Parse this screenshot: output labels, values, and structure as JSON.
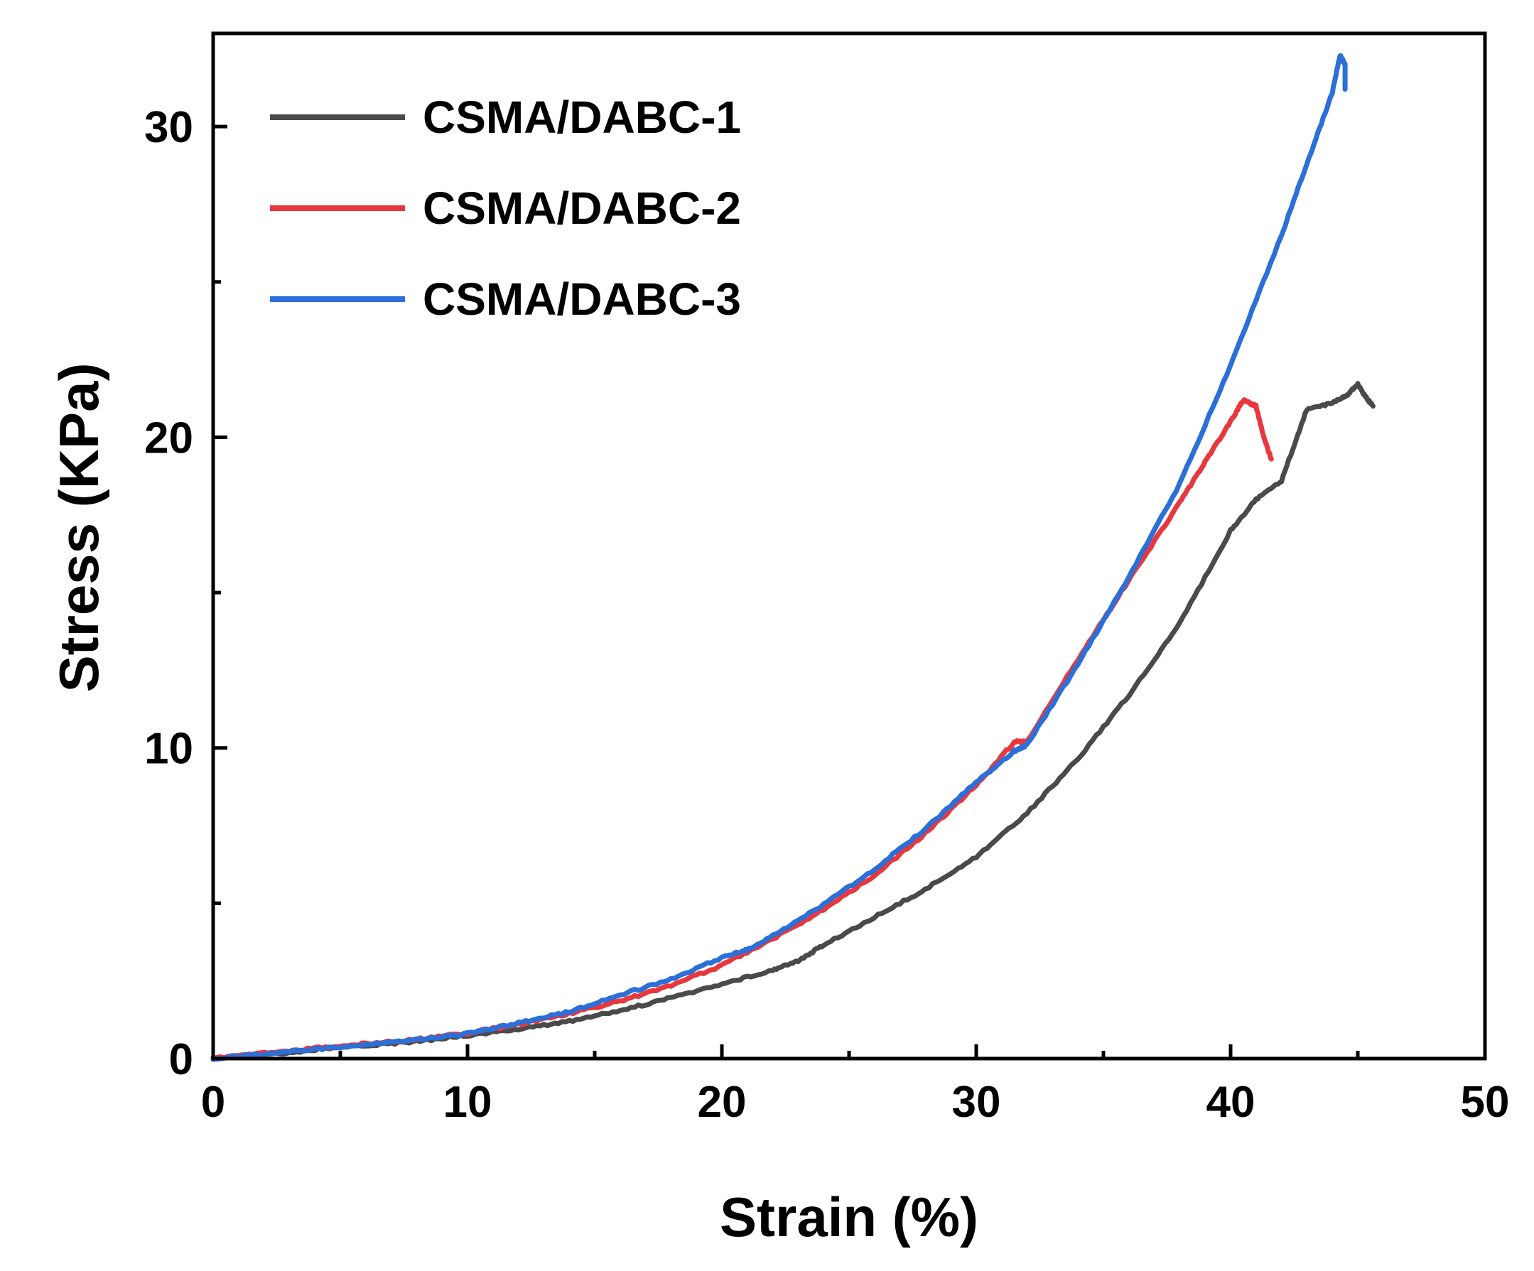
{
  "chart_data": {
    "type": "line",
    "title": "",
    "xlabel": "Strain (%)",
    "ylabel": "Stress (KPa)",
    "xlim": [
      0,
      50
    ],
    "ylim": [
      0,
      33
    ],
    "x_major_ticks": [
      0,
      10,
      20,
      30,
      40,
      50
    ],
    "x_minor_ticks": [
      5,
      15,
      25,
      35,
      45
    ],
    "y_major_ticks": [
      0,
      10,
      20,
      30
    ],
    "y_minor_ticks": [
      5,
      15,
      25
    ],
    "grid": false,
    "legend": {
      "position": "top-left"
    },
    "series": [
      {
        "name": "CSMA/DABC-1",
        "color": "#4a4a4a",
        "x": [
          0,
          2,
          4,
          6,
          8,
          10,
          12,
          14,
          16,
          18,
          20,
          22,
          23,
          24,
          26,
          28,
          30,
          32,
          34,
          36,
          38,
          40,
          41,
          42,
          43,
          44,
          44.5,
          45,
          45.3,
          45.6
        ],
        "y": [
          0,
          0.12,
          0.28,
          0.42,
          0.55,
          0.75,
          0.95,
          1.2,
          1.55,
          1.95,
          2.4,
          2.85,
          3.15,
          3.65,
          4.55,
          5.45,
          6.5,
          7.9,
          9.65,
          11.7,
          14.0,
          17.0,
          18.0,
          18.6,
          20.9,
          21.1,
          21.3,
          21.7,
          21.3,
          21.0
        ]
      },
      {
        "name": "CSMA/DABC-2",
        "color": "#e8383d",
        "x": [
          0,
          2,
          4,
          6,
          8,
          10,
          12,
          14,
          16,
          18,
          20,
          22,
          24,
          26,
          28,
          30,
          31.5,
          32,
          34,
          36,
          38,
          39,
          40,
          40.5,
          41,
          41.3,
          41.6
        ],
        "y": [
          0,
          0.18,
          0.33,
          0.48,
          0.62,
          0.82,
          1.1,
          1.45,
          1.85,
          2.35,
          3.0,
          3.85,
          4.8,
          5.9,
          7.25,
          8.8,
          10.2,
          10.2,
          12.85,
          15.4,
          17.9,
          19.2,
          20.5,
          21.2,
          21.0,
          20.0,
          19.3
        ]
      },
      {
        "name": "CSMA/DABC-3",
        "color": "#2b6fd8",
        "x": [
          0,
          2,
          4,
          6,
          8,
          10,
          12,
          14,
          16,
          18,
          20,
          21,
          22,
          24,
          26,
          28,
          30,
          31.5,
          32,
          34,
          36,
          38,
          40,
          42,
          43,
          44,
          44.3,
          44.5,
          44.5
        ],
        "y": [
          0,
          0.15,
          0.3,
          0.45,
          0.6,
          0.8,
          1.15,
          1.5,
          2.05,
          2.55,
          3.25,
          3.5,
          3.95,
          4.95,
          6.1,
          7.4,
          8.9,
          9.9,
          10.1,
          12.7,
          15.5,
          18.5,
          22.3,
          26.5,
          28.8,
          31.1,
          32.3,
          32.0,
          31.2
        ]
      }
    ]
  }
}
